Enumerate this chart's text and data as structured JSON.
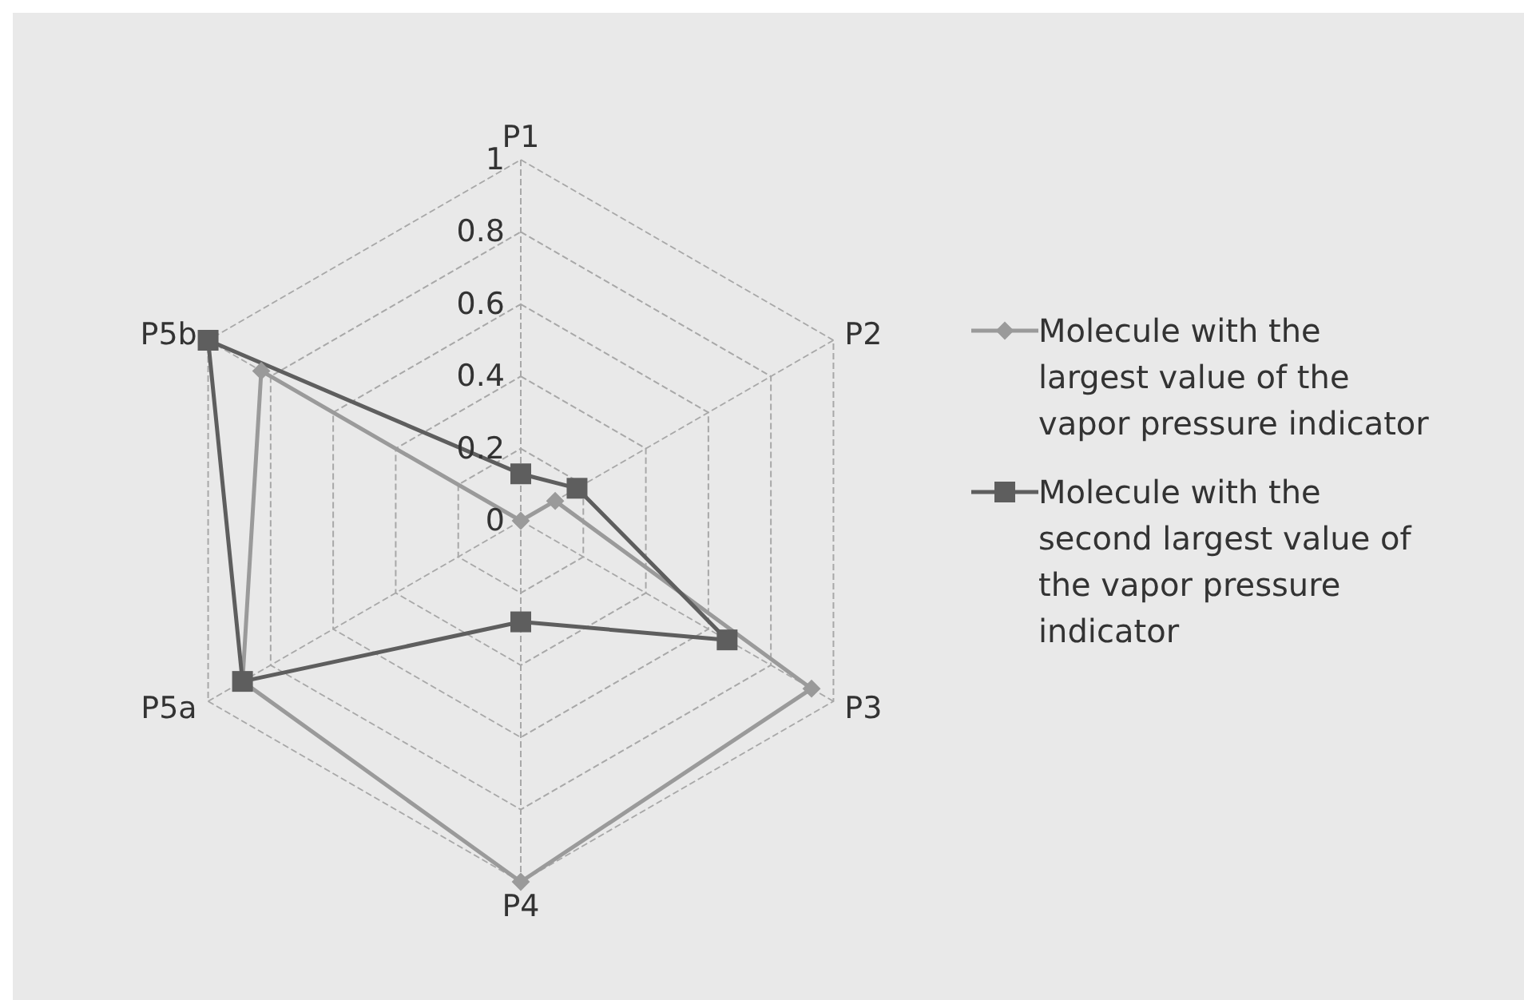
{
  "chart_data": {
    "type": "radar",
    "categories": [
      "P1",
      "P2",
      "P3",
      "P4",
      "P5a",
      "P5b"
    ],
    "series": [
      {
        "name": "Molecule with the largest value of the vapor pressure indicator",
        "color": "#9a9a9a",
        "marker": "diamond",
        "values": [
          0,
          0.11,
          0.93,
          1,
          0.89,
          0.83
        ]
      },
      {
        "name": "Molecule with the second largest value of the vapor pressure indicator",
        "color": "#5e5e5e",
        "marker": "square",
        "values": [
          0.13,
          0.18,
          0.66,
          0.28,
          0.89,
          1
        ]
      }
    ],
    "ylim": [
      0,
      1
    ],
    "yticks": [
      0,
      0.2,
      0.4,
      0.6,
      0.8,
      1
    ],
    "grid": true,
    "legend": "right"
  }
}
